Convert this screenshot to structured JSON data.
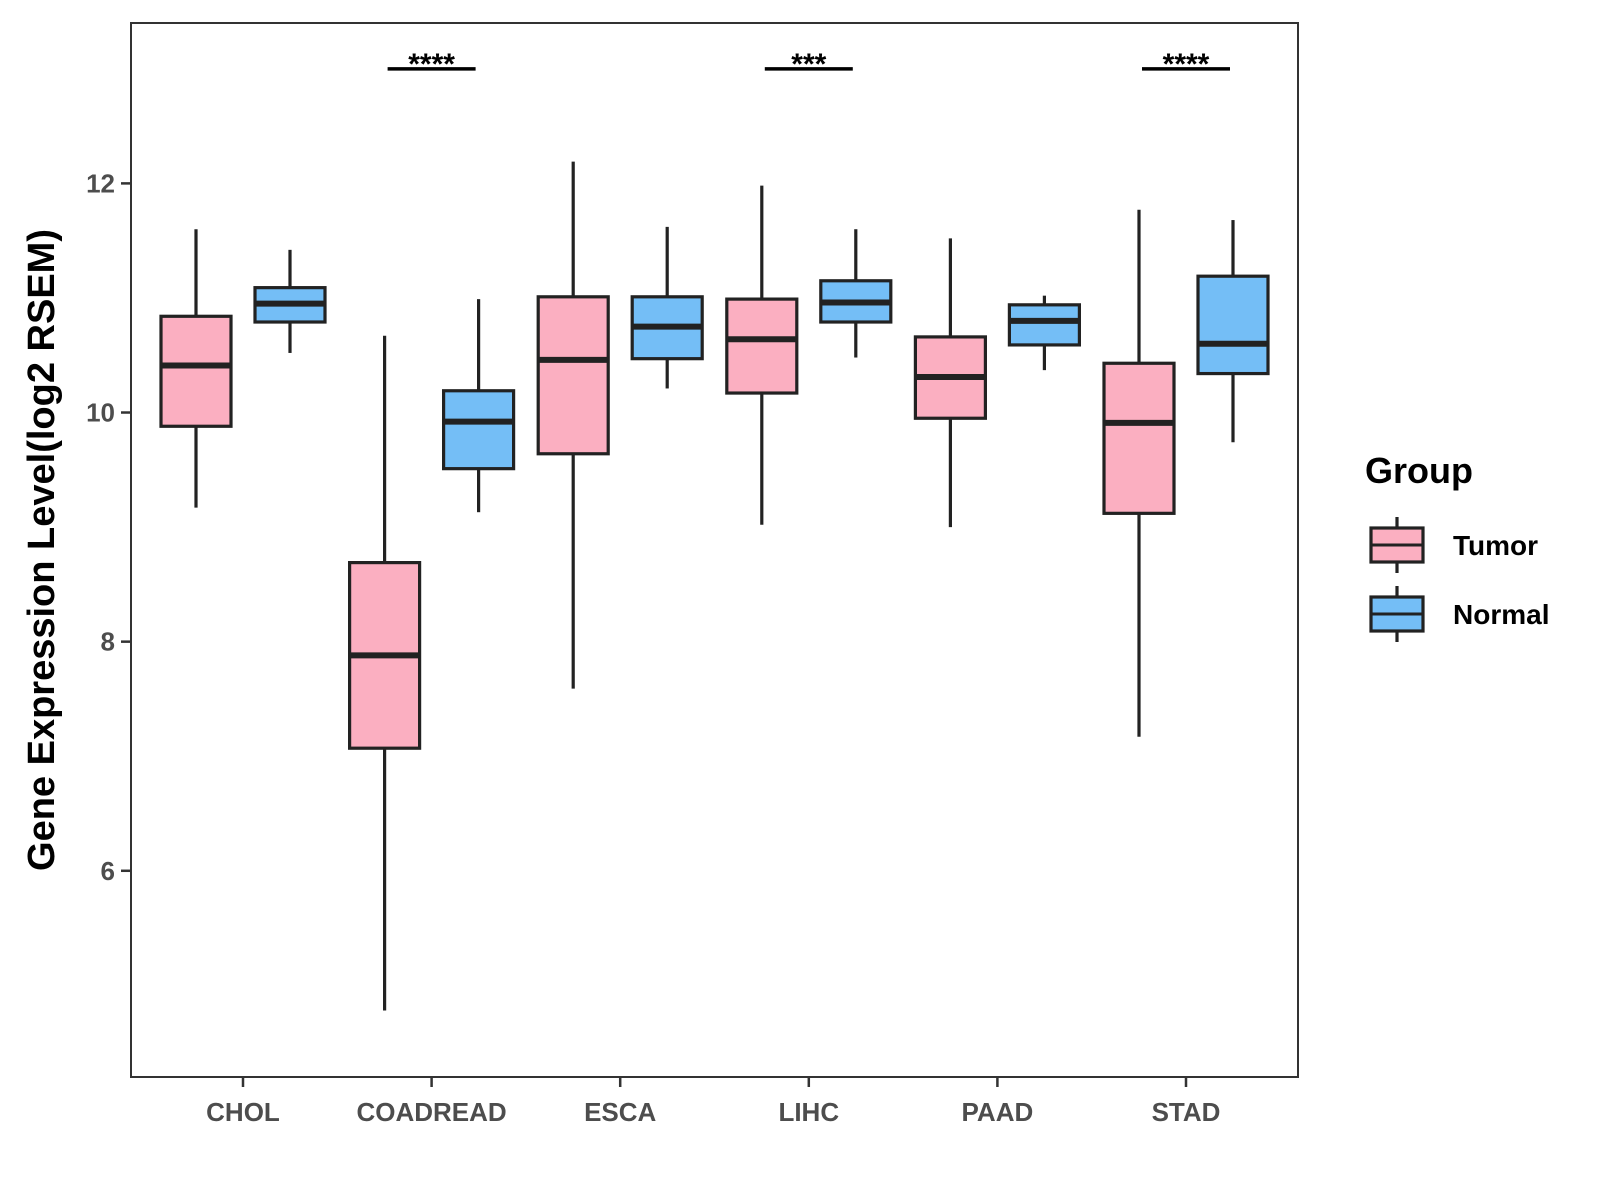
{
  "chart_data": {
    "type": "boxplot",
    "title": "",
    "xlabel": "",
    "ylabel": "Gene Expression Level(log2 RSEM)",
    "ylim": [
      4.2,
      13.4
    ],
    "yticks": [
      6,
      8,
      10,
      12
    ],
    "grid": false,
    "legend": {
      "title": "Group",
      "position": "right",
      "entries": [
        {
          "name": "Tumor",
          "color": "#FBAFC1"
        },
        {
          "name": "Normal",
          "color": "#74BEF6"
        }
      ]
    },
    "categories": [
      "CHOL",
      "COADREAD",
      "ESCA",
      "LIHC",
      "PAAD",
      "STAD"
    ],
    "series": [
      {
        "name": "Tumor",
        "color": "#FBAFC1",
        "boxes": [
          {
            "min": 9.17,
            "q1": 9.88,
            "median": 10.41,
            "q3": 10.84,
            "max": 11.6
          },
          {
            "min": 4.78,
            "q1": 7.07,
            "median": 7.88,
            "q3": 8.69,
            "max": 10.67
          },
          {
            "min": 7.59,
            "q1": 9.64,
            "median": 10.46,
            "q3": 11.01,
            "max": 12.19
          },
          {
            "min": 9.02,
            "q1": 10.17,
            "median": 10.64,
            "q3": 10.99,
            "max": 11.98
          },
          {
            "min": 9.0,
            "q1": 9.95,
            "median": 10.31,
            "q3": 10.66,
            "max": 11.52
          },
          {
            "min": 7.17,
            "q1": 9.12,
            "median": 9.91,
            "q3": 10.43,
            "max": 11.77
          }
        ]
      },
      {
        "name": "Normal",
        "color": "#74BEF6",
        "boxes": [
          {
            "min": 10.52,
            "q1": 10.79,
            "median": 10.95,
            "q3": 11.09,
            "max": 11.42
          },
          {
            "min": 9.13,
            "q1": 9.51,
            "median": 9.92,
            "q3": 10.19,
            "max": 10.99
          },
          {
            "min": 10.21,
            "q1": 10.47,
            "median": 10.75,
            "q3": 11.01,
            "max": 11.62
          },
          {
            "min": 10.48,
            "q1": 10.79,
            "median": 10.96,
            "q3": 11.15,
            "max": 11.6
          },
          {
            "min": 10.37,
            "q1": 10.59,
            "median": 10.8,
            "q3": 10.94,
            "max": 11.02
          },
          {
            "min": 9.74,
            "q1": 10.34,
            "median": 10.6,
            "q3": 11.19,
            "max": 11.68
          }
        ]
      }
    ],
    "significance": [
      {
        "category": "COADREAD",
        "label": "****",
        "y": 13.0
      },
      {
        "category": "LIHC",
        "label": "***",
        "y": 13.0
      },
      {
        "category": "STAD",
        "label": "****",
        "y": 13.0
      }
    ]
  }
}
